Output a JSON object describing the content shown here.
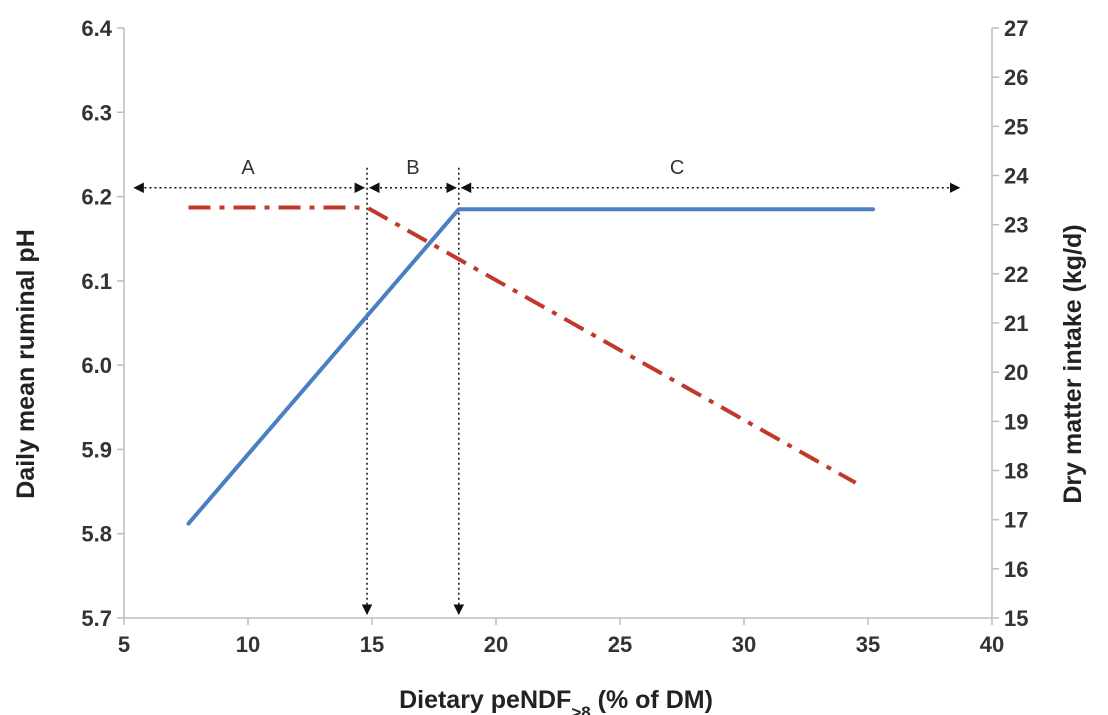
{
  "chart_data": {
    "type": "line",
    "xlabel_main": "Dietary peNDF",
    "xlabel_sub": ">8",
    "xlabel_tail": " (% of DM)",
    "ylabel_left": "Daily mean ruminal pH",
    "ylabel_right": "Dry matter intake (kg/d)",
    "xlim": [
      5,
      40
    ],
    "ylim_left": [
      5.7,
      6.4
    ],
    "ylim_right": [
      15,
      27
    ],
    "x_ticks": [
      "5",
      "10",
      "15",
      "20",
      "25",
      "30",
      "35",
      "40"
    ],
    "y_left_ticks": [
      "5.7",
      "5.8",
      "5.9",
      "6.0",
      "6.1",
      "6.2",
      "6.3",
      "6.4"
    ],
    "y_right_ticks": [
      "15",
      "16",
      "17",
      "18",
      "19",
      "20",
      "21",
      "22",
      "23",
      "24",
      "25",
      "26",
      "27"
    ],
    "grid": false,
    "series": [
      {
        "axis": "left",
        "color": "#4a7fc1",
        "style": "solid",
        "x": [
          7.6,
          18.5,
          35.2
        ],
        "y": [
          5.812,
          6.185,
          6.185
        ]
      },
      {
        "axis": "right",
        "color": "#c0392b",
        "style": "dash-dot",
        "x": [
          7.6,
          14.8,
          34.5
        ],
        "y": [
          23.35,
          23.35,
          17.75
        ]
      }
    ],
    "breakpoints": [
      14.8,
      18.5
    ],
    "zones": [
      {
        "label": "A",
        "from": 5.3,
        "to": 14.8,
        "label_x": 10
      },
      {
        "label": "B",
        "from": 14.8,
        "to": 18.5,
        "label_x": 16.65
      },
      {
        "label": "C",
        "from": 18.5,
        "to": 38.8,
        "label_x": 27.3
      }
    ],
    "zone_arrow_y": 23.75
  }
}
